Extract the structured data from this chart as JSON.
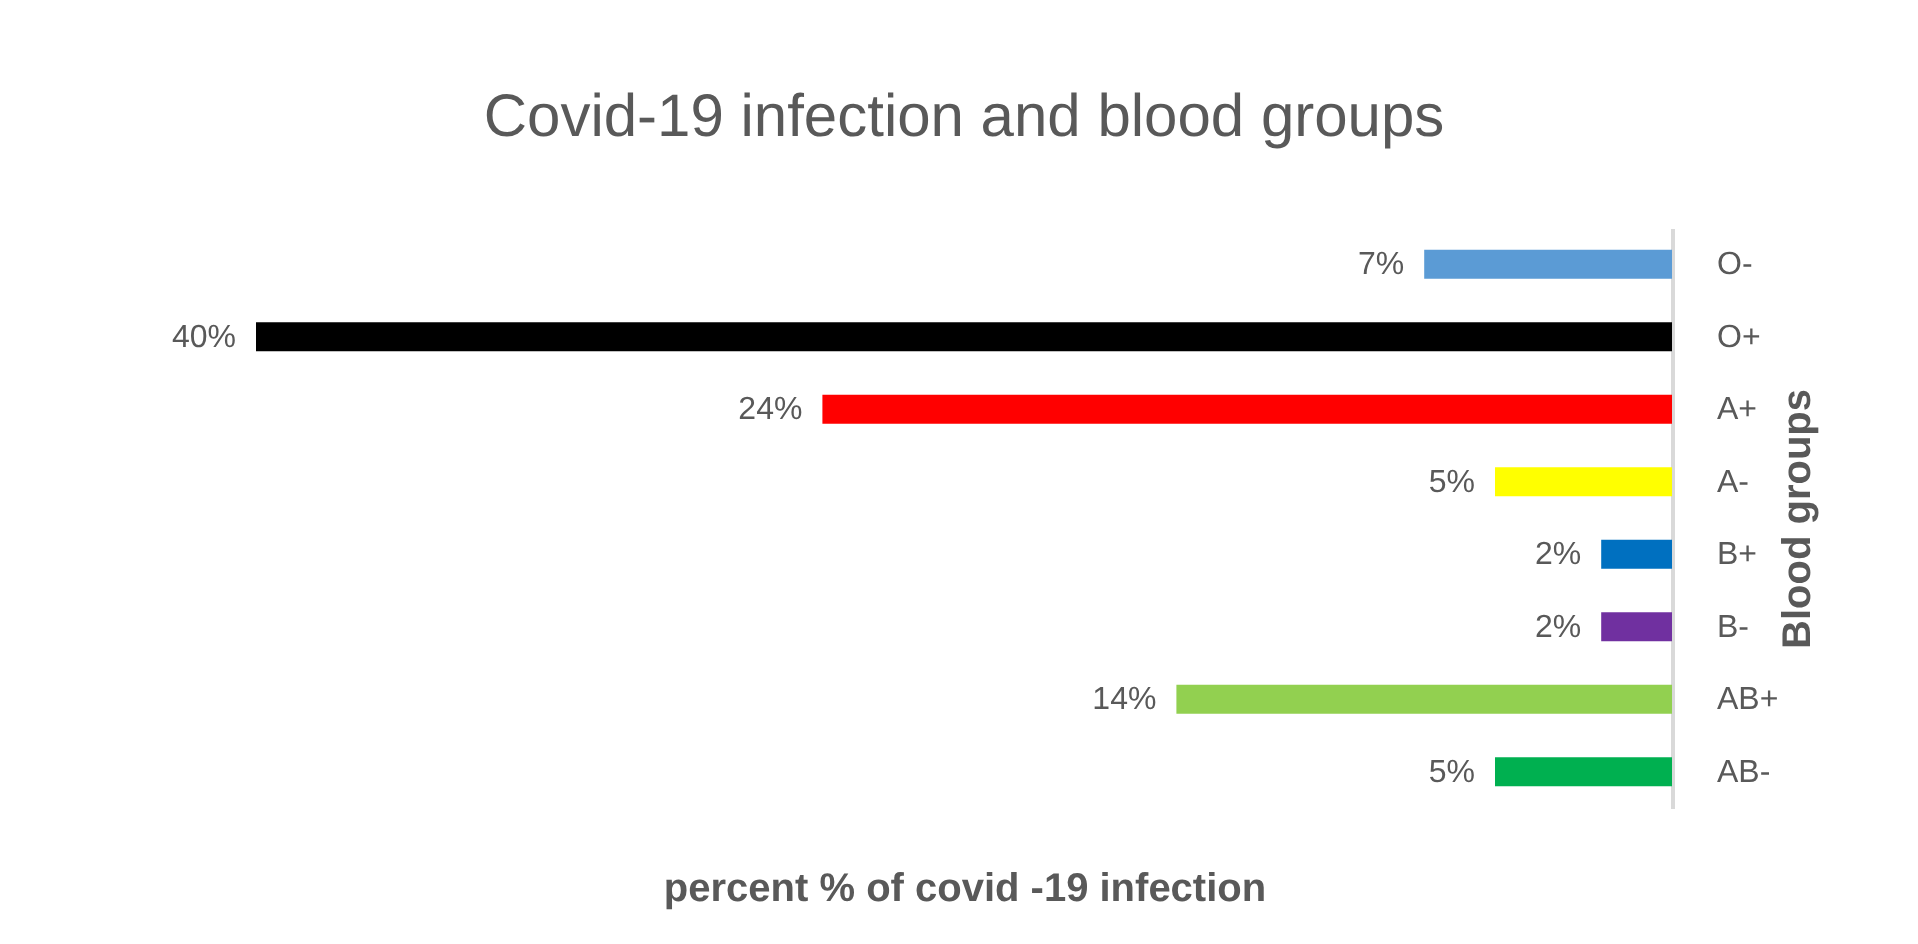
{
  "chart_data": {
    "type": "bar",
    "orientation": "horizontal",
    "title": "Covid-19 infection and blood groups",
    "xlabel": "percent % of covid -19 infection",
    "ylabel": "Blood groups",
    "categories": [
      "O-",
      "O+",
      "A+",
      "A-",
      "B+",
      "B-",
      "AB+",
      "AB-"
    ],
    "values": [
      7,
      40,
      24,
      5,
      2,
      2,
      14,
      5
    ],
    "value_labels": [
      "7%",
      "40%",
      "24%",
      "5%",
      "2%",
      "2%",
      "14%",
      "5%"
    ],
    "colors": [
      "#5b9bd5",
      "#000000",
      "#ff0000",
      "#ffff00",
      "#0070c0",
      "#7030a0",
      "#92d050",
      "#00b050"
    ],
    "tick_labels": "y",
    "grid": false,
    "legend": false
  }
}
